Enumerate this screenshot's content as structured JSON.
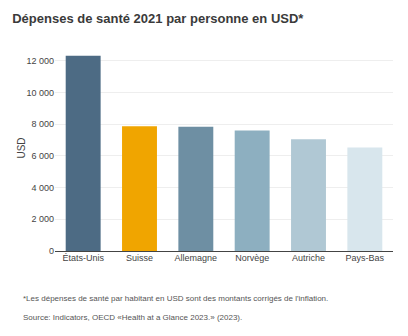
{
  "chart_data": {
    "type": "bar",
    "title": "Dépenses de santé 2021 par personne en USD*",
    "categories": [
      "États-Unis",
      "Suisse",
      "Allemagne",
      "Norvège",
      "Autriche",
      "Pays-Bas"
    ],
    "values": [
      12318,
      7874,
      7836,
      7597,
      7050,
      6531
    ],
    "colors": [
      "#4d6b84",
      "#f0a500",
      "#6e8fa3",
      "#8dafc0",
      "#b0c8d4",
      "#d8e6ed"
    ],
    "ylabel": "USD",
    "ylim": [
      0,
      13000
    ],
    "yticks": [
      0,
      {
        "value": 2000,
        "label": "2 000"
      },
      {
        "value": 4000,
        "label": "4 000"
      },
      {
        "value": 6000,
        "label": "6 000"
      },
      {
        "value": 8000,
        "label": "8 000"
      },
      {
        "value": 10000,
        "label": "10 000"
      },
      {
        "value": 12000,
        "label": "12 000"
      }
    ],
    "grid": true,
    "annotations": [
      "*Les dépenses de santé par habitant en USD sont des montants corrigés de l'inflation.",
      "Source: Indicators, OECD «Health at a Glance 2023.» (2023)."
    ]
  }
}
